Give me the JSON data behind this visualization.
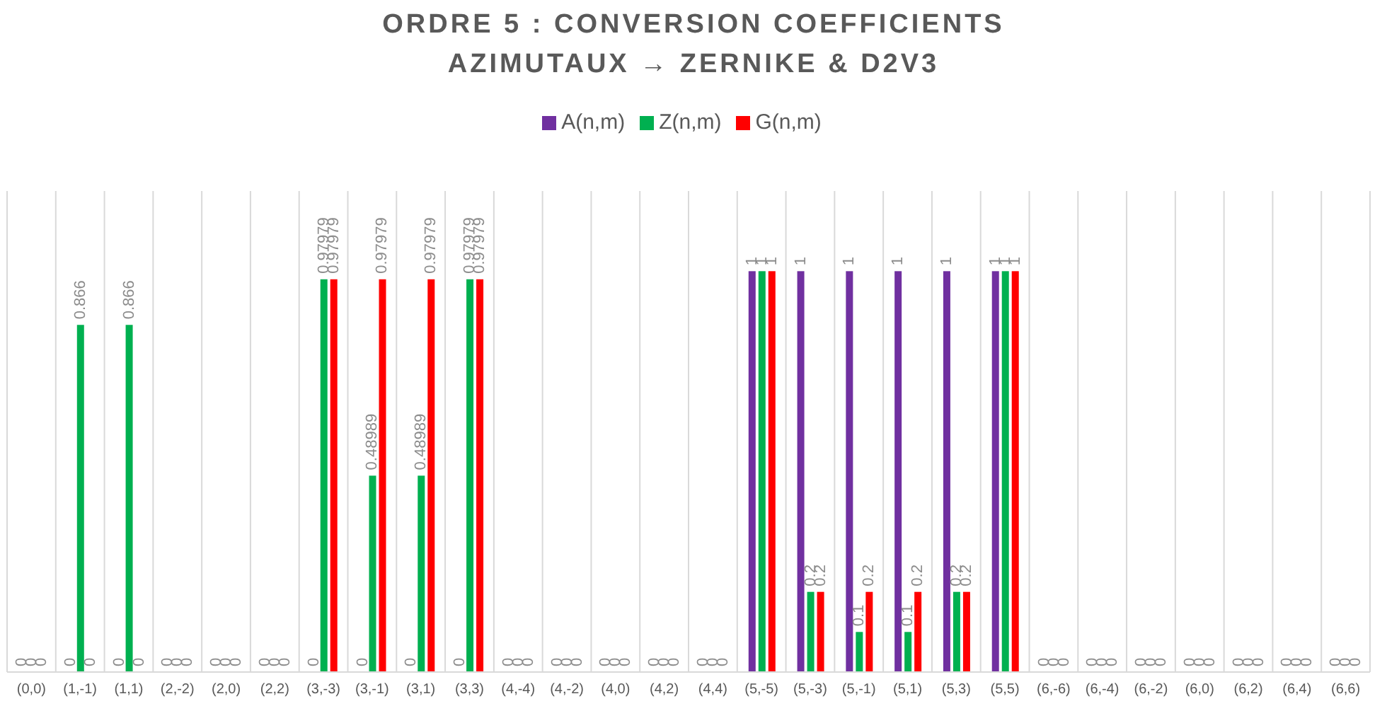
{
  "chart_data": {
    "type": "bar",
    "title": "ORDRE 5 : CONVERSION COEFFICIENTS\nAZIMUTAUX → ZERNIKE & D2V3",
    "categories": [
      "(0,0)",
      "(1,-1)",
      "(1,1)",
      "(2,-2)",
      "(2,0)",
      "(2,2)",
      "(3,-3)",
      "(3,-1)",
      "(3,1)",
      "(3,3)",
      "(4,-4)",
      "(4,-2)",
      "(4,0)",
      "(4,2)",
      "(4,4)",
      "(5,-5)",
      "(5,-3)",
      "(5,-1)",
      "(5,1)",
      "(5,3)",
      "(5,5)",
      "(6,-6)",
      "(6,-4)",
      "(6,-2)",
      "(6,0)",
      "(6,2)",
      "(6,4)",
      "(6,6)"
    ],
    "series": [
      {
        "name": "A(n,m)",
        "color": "#7030a0",
        "values": [
          0,
          0,
          0,
          0,
          0,
          0,
          0,
          0,
          0,
          0,
          0,
          0,
          0,
          0,
          0,
          1,
          1,
          1,
          1,
          1,
          1,
          0,
          0,
          0,
          0,
          0,
          0,
          0
        ]
      },
      {
        "name": "Z(n,m)",
        "color": "#00b050",
        "values": [
          0,
          0.866,
          0.866,
          0,
          0,
          0,
          0.97979,
          0.48989,
          0.48989,
          0.97979,
          0,
          0,
          0,
          0,
          0,
          1,
          0.2,
          0.1,
          0.1,
          0.2,
          1,
          0,
          0,
          0,
          0,
          0,
          0,
          0
        ]
      },
      {
        "name": "G(n,m)",
        "color": "#ff0000",
        "values": [
          0,
          0,
          0,
          0,
          0,
          0,
          0.97979,
          0.97979,
          0.97979,
          0.97979,
          0,
          0,
          0,
          0,
          0,
          1,
          0.2,
          0.2,
          0.2,
          0.2,
          1,
          0,
          0,
          0,
          0,
          0,
          0,
          0
        ]
      }
    ],
    "ylim": [
      0,
      1.2
    ],
    "tick_labels": "x",
    "data_labels": true,
    "grid": "x",
    "legend": "top"
  }
}
